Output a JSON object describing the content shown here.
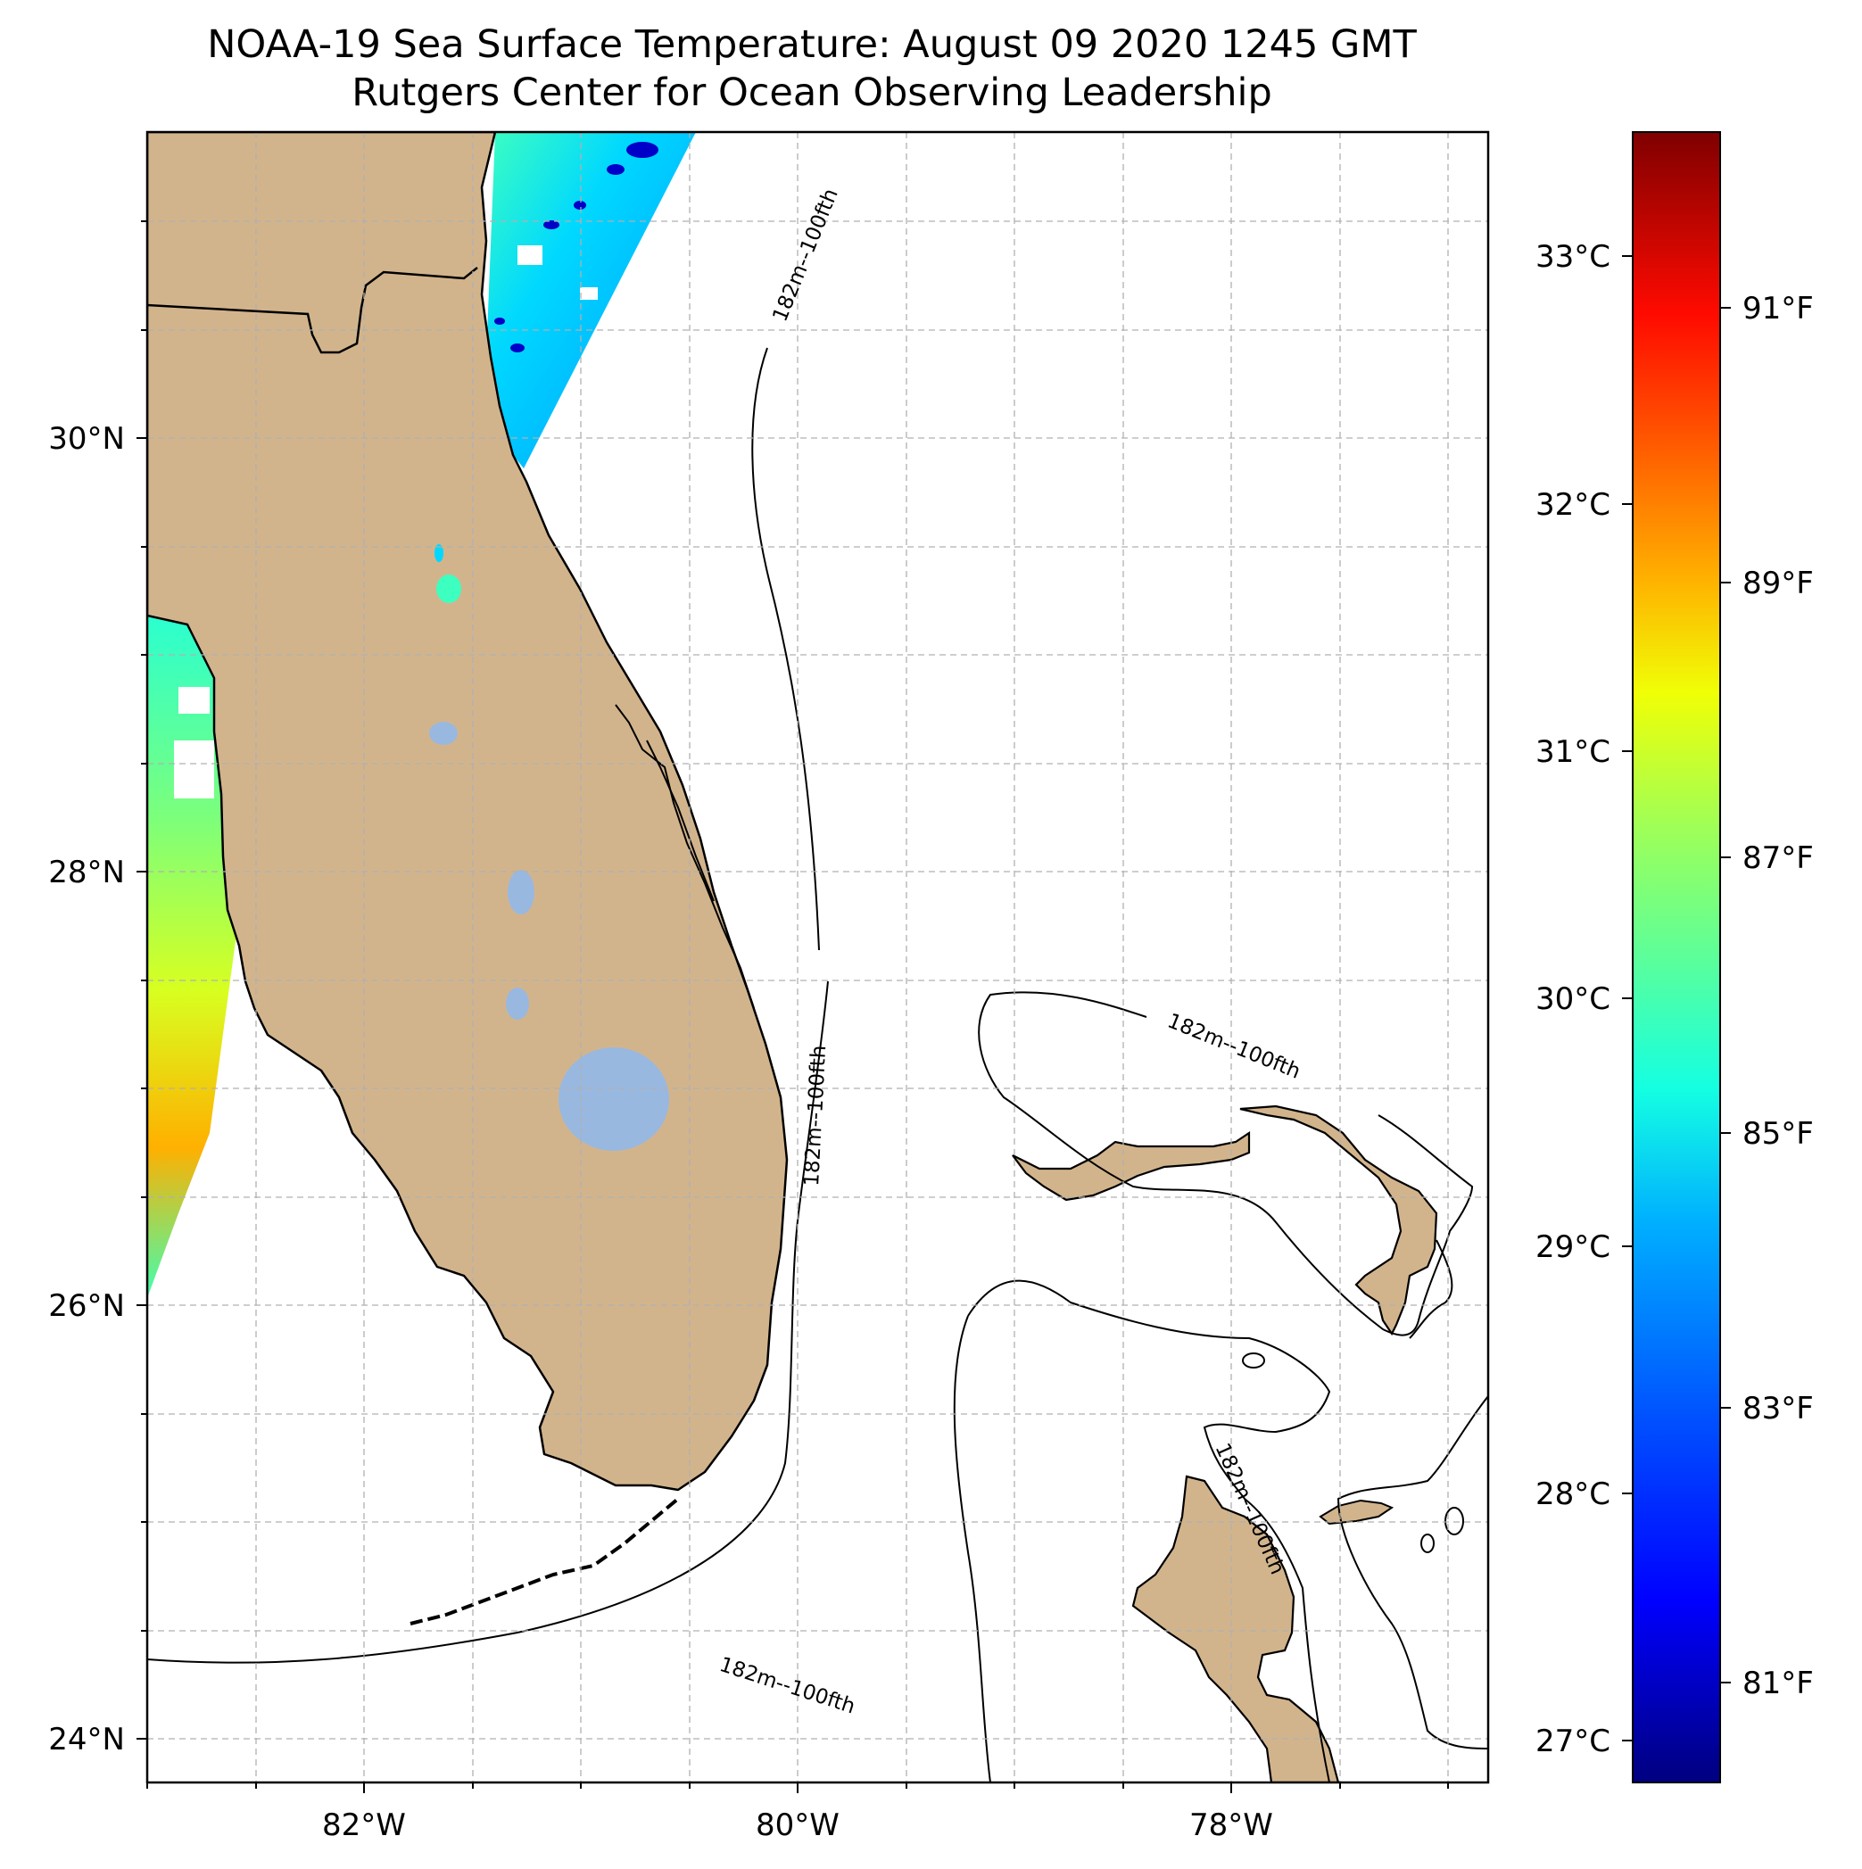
{
  "title": {
    "line1": "NOAA-19 Sea Surface Temperature: August 09 2020 1245 GMT",
    "line2": "Rutgers Center for Ocean Observing Leadership"
  },
  "axes": {
    "lon_ticks": [
      "82°W",
      "80°W",
      "78°W"
    ],
    "lat_ticks": [
      "30°N",
      "28°N",
      "26°N",
      "24°N"
    ]
  },
  "isobath_label": "182m--100fth",
  "colorbar": {
    "celsius_ticks": [
      "33°C",
      "32°C",
      "31°C",
      "30°C",
      "29°C",
      "28°C",
      "27°C"
    ],
    "fahrenheit_ticks": [
      "91°F",
      "89°F",
      "87°F",
      "85°F",
      "83°F",
      "81°F"
    ],
    "colors": [
      "#00007f",
      "#0000ff",
      "#007fff",
      "#00e5ff",
      "#3dffb9",
      "#b9ff3d",
      "#ffe500",
      "#ff7f00",
      "#ff1400",
      "#7f0000"
    ]
  },
  "colors": {
    "land": "#d2b48c",
    "lake": "#99b8e0",
    "grid": "#b0b0b0"
  }
}
